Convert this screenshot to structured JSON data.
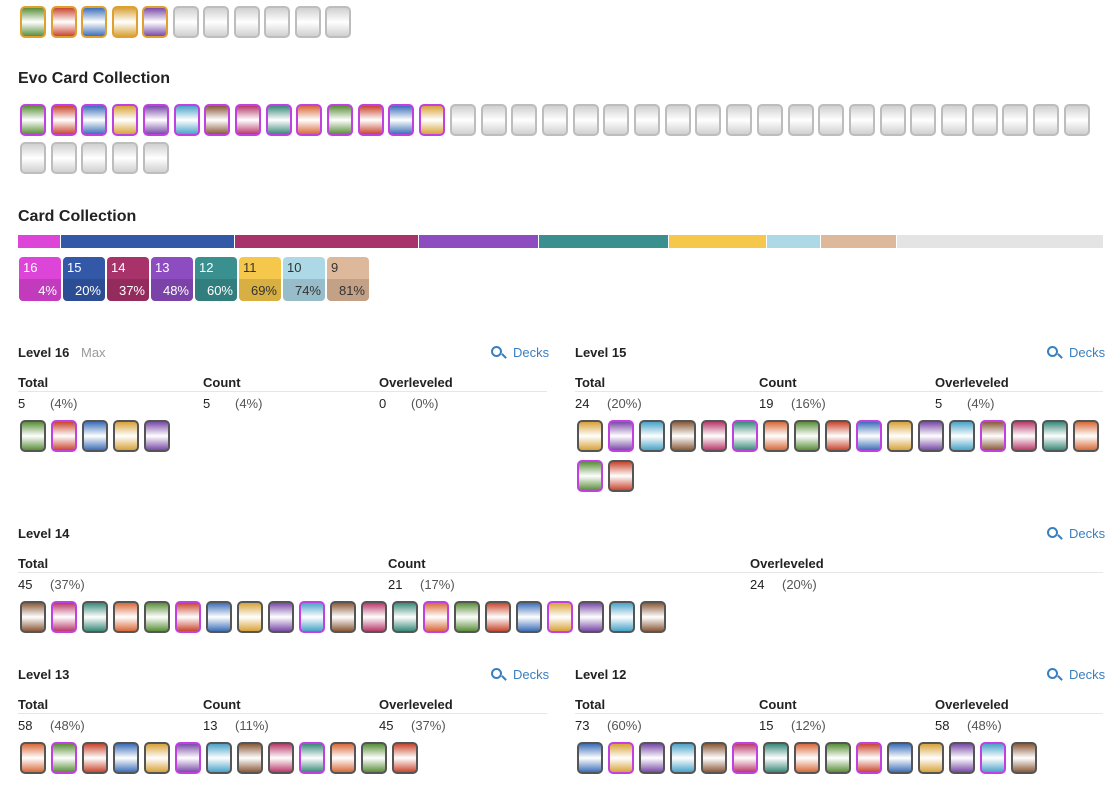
{
  "header": {
    "evo_title": "Evo Card Collection",
    "collection_title": "Card Collection"
  },
  "collection": [
    {
      "level": "16",
      "percent": {
        "value": 4,
        "label": "4%"
      },
      "color": "#dd44d8"
    },
    {
      "level": "15",
      "percent": {
        "value": 20,
        "label": "20%"
      },
      "color": "#3358a8"
    },
    {
      "level": "14",
      "percent": {
        "value": 37,
        "label": "37%"
      },
      "color": "#a8336a"
    },
    {
      "level": "13",
      "percent": {
        "value": 48,
        "label": "48%"
      },
      "color": "#8d4cbf"
    },
    {
      "level": "12",
      "percent": {
        "value": 60,
        "label": "60%"
      },
      "color": "#3a8f8f"
    },
    {
      "level": "11",
      "percent": {
        "value": 69,
        "label": "69%"
      },
      "color": "#f5c84c"
    },
    {
      "level": "10",
      "percent": {
        "value": 74,
        "label": "74%"
      },
      "color": "#add8e6"
    },
    {
      "level": "9",
      "percent": {
        "value": 81,
        "label": "81%"
      },
      "color": "#deb89a"
    }
  ],
  "levels": [
    {
      "title": "Level 16",
      "note": "Max",
      "decks": "Decks",
      "columns": [
        "Total",
        "Count",
        "Overleveled"
      ],
      "values": [
        [
          5,
          "(4%)"
        ],
        [
          5,
          "(4%)"
        ],
        [
          0,
          "(0%)"
        ]
      ]
    },
    {
      "title": "Level 15",
      "decks": "Decks",
      "columns": [
        "Total",
        "Count",
        "Overleveled"
      ],
      "values": [
        [
          24,
          "(20%)"
        ],
        [
          19,
          "(16%)"
        ],
        [
          5,
          "(4%)"
        ]
      ]
    },
    {
      "title": "Level 14",
      "decks": "Decks",
      "columns": [
        "Total",
        "Count",
        "Overleveled"
      ],
      "values": [
        [
          45,
          "(37%)"
        ],
        [
          21,
          "(17%)"
        ],
        [
          24,
          "(20%)"
        ]
      ]
    },
    {
      "title": "Level 13",
      "decks": "Decks",
      "columns": [
        "Total",
        "Count",
        "Overleveled"
      ],
      "values": [
        [
          58,
          "(48%)"
        ],
        [
          13,
          "(11%)"
        ],
        [
          45,
          "(37%)"
        ]
      ]
    },
    {
      "title": "Level 12",
      "decks": "Decks",
      "columns": [
        "Total",
        "Count",
        "Overleveled"
      ],
      "values": [
        [
          73,
          "(60%)"
        ],
        [
          15,
          "(12%)"
        ],
        [
          58,
          "(48%)"
        ]
      ]
    }
  ]
}
